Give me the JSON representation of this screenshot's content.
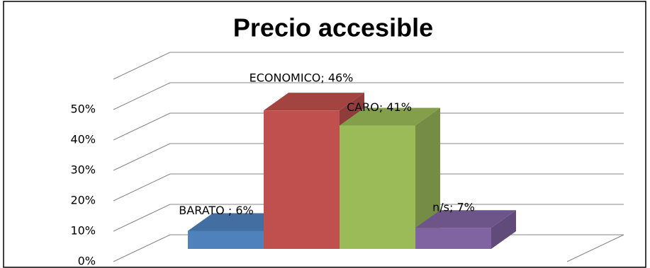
{
  "chart_data": {
    "type": "bar3d",
    "title": "Precio accesible",
    "categories": [
      "BARATO",
      "ECONOMICO",
      "CARO",
      "n/s"
    ],
    "values": [
      6,
      46,
      41,
      7
    ],
    "value_labels": [
      "BARATO  ; 6%",
      "ECONOMICO; 46%",
      "CARO; 41%",
      "n/s; 7%"
    ],
    "colors": [
      "#4f81bd",
      "#c0504d",
      "#9bbb59",
      "#8064a2"
    ],
    "ylim": [
      0,
      60
    ],
    "yticks": [
      {
        "value": 0,
        "label": "0%"
      },
      {
        "value": 10,
        "label": "10%"
      },
      {
        "value": 20,
        "label": "20%"
      },
      {
        "value": 30,
        "label": "30%"
      },
      {
        "value": 40,
        "label": "40%"
      },
      {
        "value": 50,
        "label": "50%"
      }
    ],
    "grid": true
  }
}
